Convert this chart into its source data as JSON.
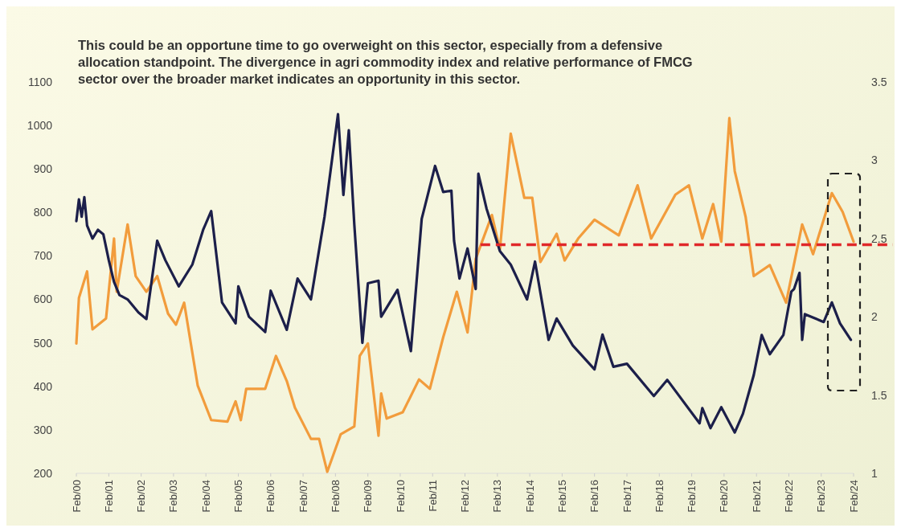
{
  "chart_data": {
    "type": "line",
    "title": "This could be an opportune time to go overweight on this sector, especially from a defensive allocation standpoint. The divergence in agri commodity index and relative performance of FMCG sector over the broader market indicates an opportunity in this sector.",
    "xlim": [
      "2000-02",
      "2024-02"
    ],
    "xticks": [
      {
        "value": "2000-02",
        "label": "Feb/00"
      },
      {
        "value": "2001-02",
        "label": "Feb/01"
      },
      {
        "value": "2002-02",
        "label": "Feb/02"
      },
      {
        "value": "2003-02",
        "label": "Feb/03"
      },
      {
        "value": "2004-02",
        "label": "Feb/04"
      },
      {
        "value": "2005-02",
        "label": "Feb/05"
      },
      {
        "value": "2006-02",
        "label": "Feb/06"
      },
      {
        "value": "2007-02",
        "label": "Feb/07"
      },
      {
        "value": "2008-02",
        "label": "Feb/08"
      },
      {
        "value": "2009-02",
        "label": "Feb/09"
      },
      {
        "value": "2010-02",
        "label": "Feb/10"
      },
      {
        "value": "2011-02",
        "label": "Feb/11"
      },
      {
        "value": "2012-02",
        "label": "Feb/12"
      },
      {
        "value": "2013-02",
        "label": "Feb/13"
      },
      {
        "value": "2014-02",
        "label": "Feb/14"
      },
      {
        "value": "2015-02",
        "label": "Feb/15"
      },
      {
        "value": "2016-02",
        "label": "Feb/16"
      },
      {
        "value": "2017-02",
        "label": "Feb/17"
      },
      {
        "value": "2018-02",
        "label": "Feb/18"
      },
      {
        "value": "2019-02",
        "label": "Feb/19"
      },
      {
        "value": "2020-02",
        "label": "Feb/20"
      },
      {
        "value": "2021-02",
        "label": "Feb/21"
      },
      {
        "value": "2022-02",
        "label": "Feb/22"
      },
      {
        "value": "2023-02",
        "label": "Feb/23"
      },
      {
        "value": "2024-02",
        "label": "Feb/24"
      }
    ],
    "ylim": [
      200,
      1100
    ],
    "yticks": [
      200,
      300,
      400,
      500,
      600,
      700,
      800,
      900,
      1000,
      1100
    ],
    "y2lim": [
      1,
      3.5
    ],
    "y2ticks": [
      1,
      1.5,
      2,
      2.5,
      3,
      3.5
    ],
    "series": [
      {
        "color": "#f29c3c",
        "axis": "y2",
        "x": [
          "2000-02",
          "2000-03",
          "2000-06",
          "2000-08",
          "2001-01",
          "2001-04",
          "2001-05",
          "2001-09",
          "2001-12",
          "2002-04",
          "2002-08",
          "2002-12",
          "2003-03",
          "2003-06",
          "2003-11",
          "2004-04",
          "2004-10",
          "2005-01",
          "2005-03",
          "2005-05",
          "2005-12",
          "2006-04",
          "2006-08",
          "2006-11",
          "2007-05",
          "2007-08",
          "2007-11",
          "2008-04",
          "2008-09",
          "2008-11",
          "2009-02",
          "2009-06",
          "2009-07",
          "2009-09",
          "2010-03",
          "2010-09",
          "2011-01",
          "2011-06",
          "2011-11",
          "2012-03",
          "2012-06",
          "2012-12",
          "2013-03",
          "2013-07",
          "2013-12",
          "2014-03",
          "2014-06",
          "2014-12",
          "2015-03",
          "2015-08",
          "2016-02",
          "2016-11",
          "2017-06",
          "2017-11",
          "2018-08",
          "2019-01",
          "2019-06",
          "2019-10",
          "2020-01",
          "2020-04",
          "2020-06",
          "2020-10",
          "2021-01",
          "2021-07",
          "2022-01",
          "2022-07",
          "2022-11",
          "2023-06",
          "2023-10",
          "2024-02"
        ],
        "values": [
          1.83,
          2.12,
          2.29,
          1.92,
          1.99,
          2.5,
          2.16,
          2.59,
          2.26,
          2.16,
          2.26,
          2.02,
          1.95,
          2.09,
          1.56,
          1.34,
          1.33,
          1.46,
          1.34,
          1.54,
          1.54,
          1.75,
          1.59,
          1.42,
          1.22,
          1.22,
          1.01,
          1.25,
          1.3,
          1.75,
          1.83,
          1.24,
          1.51,
          1.35,
          1.39,
          1.6,
          1.54,
          1.87,
          2.16,
          1.9,
          2.37,
          2.65,
          2.43,
          3.17,
          2.76,
          2.76,
          2.35,
          2.53,
          2.36,
          2.5,
          2.62,
          2.52,
          2.84,
          2.5,
          2.78,
          2.84,
          2.5,
          2.72,
          2.48,
          3.27,
          2.93,
          2.64,
          2.26,
          2.33,
          2.09,
          2.59,
          2.4,
          2.79,
          2.67,
          2.48
        ]
      },
      {
        "color": "#1c1f4a",
        "x": [
          "2000-02",
          "2000-03",
          "2000-04",
          "2000-05",
          "2000-06",
          "2000-08",
          "2000-10",
          "2000-12",
          "2001-02",
          "2001-04",
          "2001-06",
          "2001-09",
          "2002-01",
          "2002-04",
          "2002-08",
          "2002-11",
          "2003-04",
          "2003-09",
          "2004-01",
          "2004-04",
          "2004-08",
          "2005-01",
          "2005-02",
          "2005-06",
          "2005-12",
          "2006-02",
          "2006-08",
          "2006-12",
          "2007-05",
          "2007-10",
          "2008-03",
          "2008-05",
          "2008-07",
          "2008-09",
          "2008-12",
          "2009-02",
          "2009-06",
          "2009-07",
          "2010-01",
          "2010-06",
          "2010-10",
          "2011-03",
          "2011-06",
          "2011-09",
          "2011-10",
          "2011-12",
          "2012-03",
          "2012-06",
          "2012-07",
          "2012-10",
          "2013-03",
          "2013-07",
          "2014-01",
          "2014-04",
          "2014-09",
          "2014-12",
          "2015-06",
          "2016-02",
          "2016-05",
          "2016-09",
          "2017-02",
          "2017-12",
          "2018-05",
          "2019-05",
          "2019-06",
          "2019-09",
          "2020-01",
          "2020-06",
          "2020-09",
          "2021-01",
          "2021-04",
          "2021-07",
          "2021-12",
          "2022-03",
          "2022-04",
          "2022-06",
          "2022-07",
          "2022-08",
          "2023-03",
          "2023-06",
          "2023-09",
          "2024-01"
        ],
        "values": [
          780,
          830,
          790,
          835,
          770,
          740,
          760,
          750,
          690,
          640,
          610,
          600,
          570,
          555,
          735,
          690,
          630,
          680,
          760,
          803,
          593,
          545,
          630,
          560,
          525,
          620,
          530,
          648,
          600,
          790,
          1026,
          840,
          989,
          772,
          500,
          637,
          643,
          560,
          622,
          481,
          785,
          907,
          847,
          850,
          735,
          648,
          717,
          624,
          889,
          809,
          711,
          680,
          600,
          687,
          507,
          556,
          494,
          439,
          519,
          445,
          452,
          378,
          415,
          315,
          350,
          304,
          352,
          294,
          337,
          426,
          518,
          474,
          518,
          618,
          624,
          661,
          507,
          566,
          548,
          593,
          545,
          507
        ]
      }
    ],
    "ref_lines": [
      {
        "axis": "y2",
        "value": 2.46,
        "color": "#e0282a",
        "line_style": "dashed"
      }
    ]
  }
}
